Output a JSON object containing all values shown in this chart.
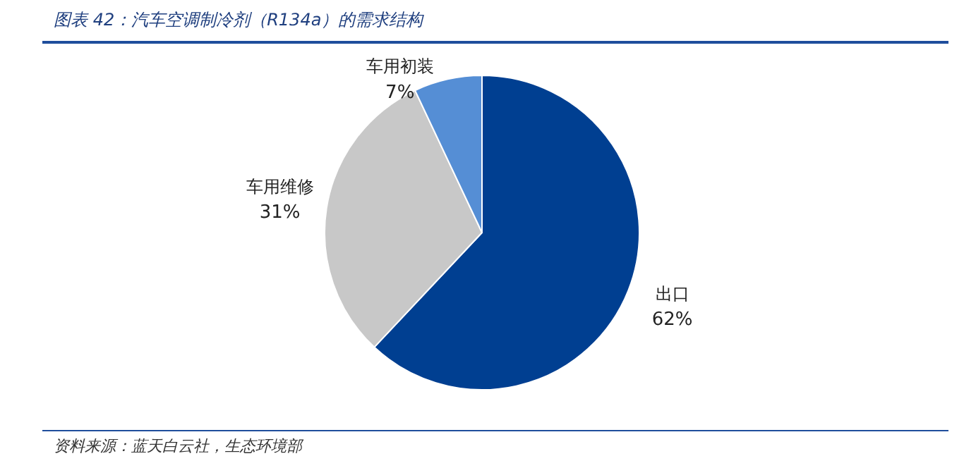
{
  "chart_data": {
    "type": "pie",
    "title": "图表 42：汽车空调制冷剂（R134a）的需求结构",
    "categories": [
      "出口",
      "车用维修",
      "车用初装"
    ],
    "values": [
      62,
      31,
      7
    ],
    "value_labels": [
      "62%",
      "31%",
      "7%"
    ],
    "colors": [
      "#003f91",
      "#c8c8c8",
      "#558ed5"
    ],
    "legend": false,
    "annotations": [
      "资料来源：蓝天白云社，生态环境部"
    ]
  }
}
